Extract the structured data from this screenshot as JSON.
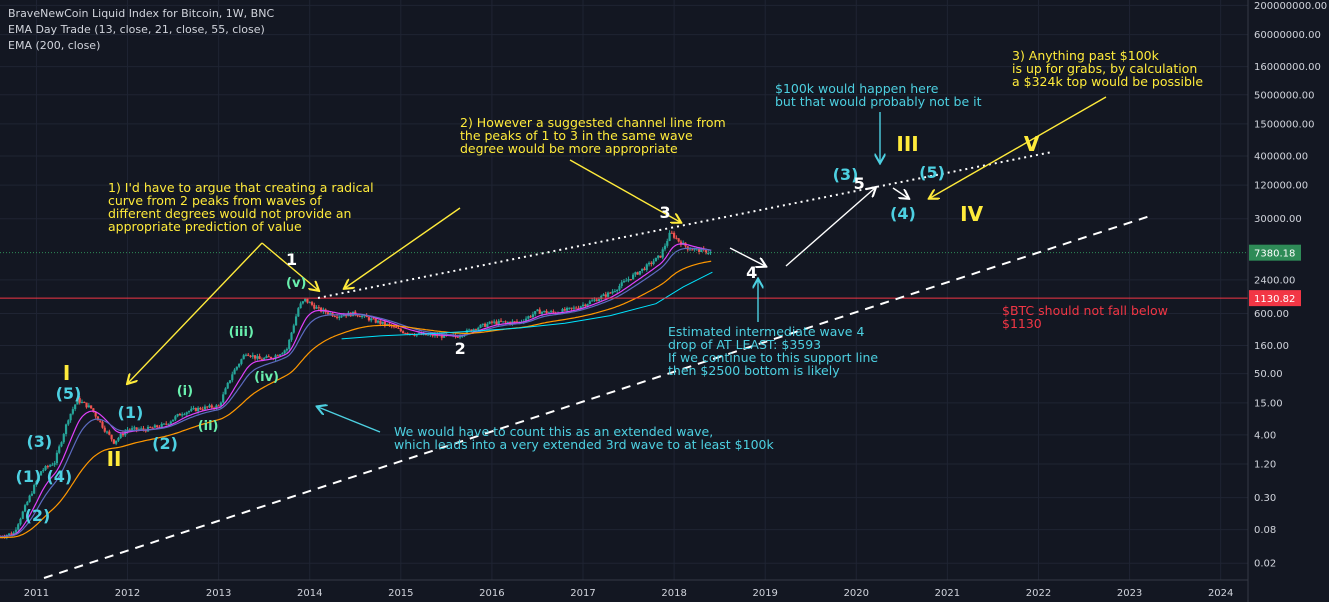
{
  "legend": {
    "title": "BraveNewCoin Liquid Index for Bitcoin, 1W, BNC",
    "indicator1": "EMA Day Trade (13, close, 21, close, 55, close)",
    "indicator2": "EMA (200, close)"
  },
  "colors": {
    "background": "#131722",
    "up_candle": "#26a69a",
    "down_candle": "#ef5350",
    "ema13": "#e040fb",
    "ema21": "#5c6bc0",
    "ema55": "#ff9800",
    "ema200": "#00e5ff",
    "annotation_yellow": "#ffeb3b",
    "annotation_cyan": "#4dd0e1",
    "support_red": "#f23645",
    "price_green": "#2e8b57"
  },
  "chart_data": {
    "type": "line",
    "title": "BraveNewCoin Liquid Index for Bitcoin, 1W, BNC",
    "yscale": "log",
    "x_ticks": [
      "2011",
      "2012",
      "2013",
      "2014",
      "2015",
      "2016",
      "2017",
      "2018",
      "2019",
      "2020",
      "2021",
      "2022",
      "2023",
      "2024"
    ],
    "y_ticks": [
      "200000000.00",
      "60000000.00",
      "16000000.00",
      "5000000.00",
      "1500000.00",
      "400000.00",
      "120000.00",
      "30000.00",
      "2400.00",
      "600.00",
      "160.00",
      "50.00",
      "15.00",
      "4.00",
      "1.20",
      "0.30",
      "0.08",
      "0.02"
    ],
    "ylim": [
      0.01,
      250000000
    ],
    "xlim": [
      2010.6,
      2024.3
    ],
    "grid": true,
    "price_series": {
      "name": "BTC",
      "x": [
        2010.6,
        2010.75,
        2010.9,
        2011.05,
        2011.2,
        2011.35,
        2011.45,
        2011.6,
        2011.75,
        2011.85,
        2012.0,
        2012.2,
        2012.4,
        2012.6,
        2012.8,
        2013.0,
        2013.15,
        2013.3,
        2013.45,
        2013.6,
        2013.75,
        2013.88,
        2013.95,
        2014.1,
        2014.3,
        2014.5,
        2014.7,
        2014.9,
        2015.0,
        2015.2,
        2015.4,
        2015.6,
        2015.8,
        2016.0,
        2016.3,
        2016.5,
        2016.7,
        2016.9,
        2017.1,
        2017.3,
        2017.5,
        2017.7,
        2017.85,
        2017.96,
        2018.05,
        2018.15,
        2018.3,
        2018.42
      ],
      "y": [
        0.06,
        0.07,
        0.25,
        0.9,
        1.3,
        8,
        17,
        12,
        5,
        3,
        5,
        5,
        6,
        10,
        12,
        13,
        50,
        120,
        90,
        100,
        140,
        800,
        1050,
        700,
        550,
        600,
        450,
        350,
        290,
        250,
        240,
        230,
        320,
        410,
        420,
        650,
        620,
        740,
        1000,
        1400,
        2500,
        4200,
        6500,
        17000,
        12000,
        9000,
        8000,
        7380
      ]
    },
    "ema200": {
      "name": "EMA (200, close)",
      "x": [
        2014.35,
        2014.8,
        2015.3,
        2015.8,
        2016.3,
        2016.8,
        2017.3,
        2017.8,
        2018.1,
        2018.42
      ],
      "y": [
        210,
        240,
        260,
        290,
        330,
        400,
        550,
        900,
        1800,
        3300
      ]
    },
    "current_price": "7380.18",
    "support_level": "1130.82",
    "wave_labels": [
      {
        "text": "(1)",
        "x": 2010.88,
        "y": 0.7,
        "color": "cyan"
      },
      {
        "text": "(2)",
        "x": 2010.98,
        "y": 0.14,
        "color": "cyan"
      },
      {
        "text": "(3)",
        "x": 2011.0,
        "y": 3,
        "color": "cyan"
      },
      {
        "text": "(4)",
        "x": 2011.22,
        "y": 0.7,
        "color": "cyan"
      },
      {
        "text": "(5)",
        "x": 2011.32,
        "y": 22,
        "color": "cyan"
      },
      {
        "text": "I",
        "x": 2011.4,
        "y": 55,
        "color": "yellow"
      },
      {
        "text": "II",
        "x": 2011.88,
        "y": 1.6,
        "color": "yellow"
      },
      {
        "text": "(1)",
        "x": 2012.0,
        "y": 10,
        "color": "cyan"
      },
      {
        "text": "(2)",
        "x": 2012.38,
        "y": 2.7,
        "color": "cyan"
      },
      {
        "text": "(i)",
        "x": 2012.65,
        "y": 22,
        "color": "green"
      },
      {
        "text": "(ii)",
        "x": 2012.88,
        "y": 5,
        "color": "green"
      },
      {
        "text": "(iii)",
        "x": 2013.22,
        "y": 250,
        "color": "green"
      },
      {
        "text": "(iv)",
        "x": 2013.5,
        "y": 38,
        "color": "green"
      },
      {
        "text": "(v)",
        "x": 2013.85,
        "y": 1900,
        "color": "green"
      },
      {
        "text": "1",
        "x": 2013.85,
        "y": 5500,
        "color": "white"
      },
      {
        "text": "2",
        "x": 2015.7,
        "y": 140,
        "color": "white"
      },
      {
        "text": "3",
        "x": 2017.95,
        "y": 38000,
        "color": "white"
      },
      {
        "text": "4",
        "x": 2018.9,
        "y": 3200,
        "color": "white"
      },
      {
        "text": "(3)",
        "x": 2019.85,
        "y": 180000,
        "color": "cyan"
      },
      {
        "text": "5",
        "x": 2020.08,
        "y": 125000,
        "color": "white"
      },
      {
        "text": "III",
        "x": 2020.55,
        "y": 700000,
        "color": "yellow"
      },
      {
        "text": "(5)",
        "x": 2020.8,
        "y": 200000,
        "color": "cyan"
      },
      {
        "text": "(4)",
        "x": 2020.48,
        "y": 36000,
        "color": "cyan"
      },
      {
        "text": "IV",
        "x": 2021.25,
        "y": 40000,
        "color": "yellow"
      },
      {
        "text": "V",
        "x": 2021.95,
        "y": 700000,
        "color": "yellow"
      }
    ]
  },
  "annotations": {
    "note1": "1) I'd have to argue that creating a radical\ncurve from 2 peaks from waves of\ndifferent degrees would not provide an\nappropriate prediction of value",
    "note2": "2) However a suggested channel line from\nthe peaks of 1 to 3 in the same wave\ndegree would be more appropriate",
    "note3": "3) Anything past $100k\nis up for grabs, by calculation\na $324k top would be possible",
    "note_100k": "$100k would happen here\nbut that would probably not be it",
    "note_wave4": "Estimated intermediate wave 4\ndrop of AT LEAST: $3593\nIf we continue to this support line\nthen $2500 bottom is likely",
    "note_extended": "We would have to count this as an extended wave,\nwhich leads into a very extended 3rd wave to at least $100k",
    "note_support": "$BTC should not fall below\n$1130"
  }
}
